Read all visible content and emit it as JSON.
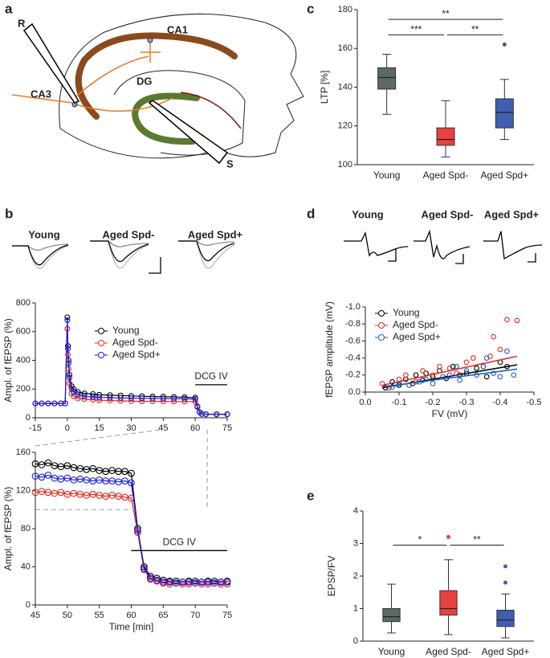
{
  "diagram": {
    "panel": "a",
    "labels": [
      "R",
      "CA1",
      "CA3",
      "DG",
      "S"
    ]
  },
  "chart_data": [
    {
      "type": "line",
      "panel": "b",
      "trace_labels": [
        "Young",
        "Aged Spd-",
        "Aged Spd+"
      ],
      "ylabel": "Ampl. of fEPSP (%)",
      "legend": "upper right",
      "x": [
        -15,
        -12,
        -9,
        -6,
        -3,
        -1,
        0,
        0.3,
        0.6,
        1,
        2,
        3,
        5,
        8,
        12,
        15,
        20,
        25,
        30,
        35,
        40,
        45,
        50,
        55,
        60,
        61,
        62,
        63,
        65,
        70,
        75
      ],
      "series": [
        {
          "name": "Young",
          "color": "#000000",
          "values": [
            100,
            100,
            100,
            100,
            100,
            100,
            700,
            500,
            400,
            300,
            220,
            200,
            180,
            170,
            165,
            160,
            158,
            155,
            152,
            150,
            148,
            147,
            145,
            143,
            140,
            80,
            40,
            28,
            25,
            25,
            25
          ]
        },
        {
          "name": "Aged Spd-",
          "color": "#e8281e",
          "values": [
            100,
            100,
            100,
            100,
            100,
            100,
            620,
            440,
            340,
            240,
            170,
            150,
            135,
            130,
            125,
            122,
            120,
            118,
            116,
            115,
            115,
            114,
            113,
            113,
            112,
            75,
            38,
            26,
            24,
            23,
            23
          ]
        },
        {
          "name": "Aged Spd+",
          "color": "#1f1fe0",
          "values": [
            100,
            100,
            100,
            100,
            100,
            100,
            680,
            480,
            380,
            280,
            200,
            180,
            160,
            150,
            145,
            142,
            140,
            138,
            137,
            136,
            135,
            134,
            133,
            132,
            130,
            78,
            39,
            27,
            25,
            24,
            24
          ]
        }
      ],
      "xlim": [
        -15,
        75
      ],
      "xticks": [
        -15,
        0,
        15,
        30,
        45,
        60,
        75
      ],
      "ylim": [
        0,
        800
      ],
      "yticks": [
        0,
        200,
        400,
        600,
        800
      ],
      "annotation": {
        "text": "DCG IV",
        "x": [
          60,
          75
        ],
        "y": 230
      }
    },
    {
      "type": "line",
      "xlabel": "Time [min]",
      "ylabel": "Ampl. of fEPSP (%)",
      "x": [
        45,
        46,
        47,
        48,
        49,
        50,
        51,
        52,
        53,
        54,
        55,
        56,
        57,
        58,
        59,
        60,
        61,
        62,
        63,
        64,
        65,
        66,
        67,
        68,
        69,
        70,
        71,
        72,
        73,
        74,
        75
      ],
      "series": [
        {
          "color": "#000000",
          "values": [
            148,
            147,
            149,
            146,
            145,
            146,
            144,
            143,
            142,
            143,
            141,
            140,
            141,
            140,
            140,
            138,
            80,
            40,
            30,
            28,
            26,
            25,
            25,
            24,
            25,
            25,
            24,
            25,
            25,
            24,
            25
          ]
        },
        {
          "color": "#e8281e",
          "values": [
            118,
            119,
            118,
            117,
            118,
            116,
            117,
            116,
            115,
            116,
            115,
            114,
            115,
            114,
            113,
            112,
            76,
            37,
            27,
            25,
            23,
            22,
            23,
            22,
            22,
            23,
            22,
            22,
            23,
            22,
            22
          ]
        },
        {
          "color": "#1f1fe0",
          "values": [
            135,
            134,
            136,
            133,
            132,
            133,
            131,
            132,
            131,
            130,
            131,
            130,
            130,
            129,
            130,
            128,
            78,
            38,
            28,
            26,
            24,
            24,
            23,
            24,
            24,
            23,
            24,
            24,
            23,
            24,
            24
          ]
        }
      ],
      "xlim": [
        45,
        75
      ],
      "xticks": [
        45,
        50,
        55,
        60,
        65,
        70,
        75
      ],
      "ylim": [
        0,
        160
      ],
      "yticks": [
        0,
        40,
        80,
        120,
        160
      ],
      "reference_line": {
        "y": 100,
        "x": [
          45,
          60
        ]
      },
      "annotation": {
        "text": "DCG IV",
        "x": [
          60,
          75
        ],
        "y": 57
      }
    },
    {
      "type": "box",
      "panel": "c",
      "ylabel": "LTP [%]",
      "categories": [
        "Young",
        "Aged Spd-",
        "Aged Spd+"
      ],
      "colors": [
        "#5a6a62",
        "#e8413f",
        "#3f5fb0"
      ],
      "boxes": [
        {
          "whisker_low": 126,
          "q1": 139,
          "median": 145,
          "q3": 150,
          "whisker_high": 157,
          "outliers": []
        },
        {
          "whisker_low": 104,
          "q1": 110,
          "median": 113,
          "q3": 119,
          "whisker_high": 133,
          "outliers": []
        },
        {
          "whisker_low": 113,
          "q1": 119,
          "median": 127,
          "q3": 134,
          "whisker_high": 144,
          "outliers": [
            162
          ]
        }
      ],
      "ylim": [
        100,
        180
      ],
      "yticks": [
        100,
        120,
        140,
        160,
        180
      ],
      "brackets": [
        {
          "from": 0,
          "to": 2,
          "y": 175,
          "label": "**"
        },
        {
          "from": 0,
          "to": 1,
          "y": 167,
          "label": "***"
        },
        {
          "from": 1,
          "to": 2,
          "y": 167,
          "label": "**"
        }
      ]
    },
    {
      "type": "scatter",
      "panel": "d",
      "trace_labels": [
        "Young",
        "Aged Spd-",
        "Aged Spd+"
      ],
      "xlabel": "FV  (mV)",
      "ylabel": "fEPSP amplitude (mV)",
      "legend": "upper left",
      "series": [
        {
          "name": "Young",
          "color": "#000000",
          "x": [
            -0.06,
            -0.08,
            -0.1,
            -0.12,
            -0.14,
            -0.15,
            -0.17,
            -0.18,
            -0.2,
            -0.22,
            -0.24,
            -0.26,
            -0.28,
            -0.3,
            -0.33,
            -0.36,
            -0.4,
            -0.42
          ],
          "values": [
            -0.05,
            -0.12,
            -0.08,
            -0.15,
            -0.1,
            -0.2,
            -0.14,
            -0.22,
            -0.18,
            -0.25,
            -0.16,
            -0.3,
            -0.2,
            -0.22,
            -0.28,
            -0.18,
            -0.35,
            -0.3
          ],
          "fit": {
            "x": [
              -0.05,
              -0.45
            ],
            "y": [
              -0.05,
              -0.32
            ]
          }
        },
        {
          "name": "Aged Spd-",
          "color": "#e8281e",
          "x": [
            -0.05,
            -0.07,
            -0.1,
            -0.12,
            -0.15,
            -0.17,
            -0.2,
            -0.22,
            -0.25,
            -0.27,
            -0.3,
            -0.32,
            -0.35,
            -0.37,
            -0.4,
            -0.42,
            -0.45,
            -0.38
          ],
          "values": [
            -0.1,
            -0.05,
            -0.15,
            -0.2,
            -0.12,
            -0.25,
            -0.2,
            -0.3,
            -0.28,
            -0.22,
            -0.35,
            -0.4,
            -0.3,
            -0.42,
            -0.5,
            -0.85,
            -0.84,
            -0.65
          ],
          "fit": {
            "x": [
              -0.05,
              -0.45
            ],
            "y": [
              -0.08,
              -0.42
            ]
          }
        },
        {
          "name": "Aged Spd+",
          "color": "#1f5fc0",
          "x": [
            -0.08,
            -0.1,
            -0.13,
            -0.16,
            -0.18,
            -0.2,
            -0.23,
            -0.25,
            -0.28,
            -0.3,
            -0.33,
            -0.35,
            -0.38,
            -0.4,
            -0.42,
            -0.44,
            -0.36,
            -0.27
          ],
          "values": [
            -0.06,
            -0.1,
            -0.08,
            -0.12,
            -0.15,
            -0.1,
            -0.18,
            -0.2,
            -0.14,
            -0.25,
            -0.2,
            -0.3,
            -0.22,
            -0.18,
            -0.48,
            -0.2,
            -0.4,
            -0.3
          ],
          "fit": {
            "x": [
              -0.05,
              -0.45
            ],
            "y": [
              -0.06,
              -0.27
            ]
          }
        }
      ],
      "xlim": [
        0,
        -0.5
      ],
      "xticks": [
        {
          "value": 0,
          "label": "0.0"
        },
        -0.1,
        -0.2,
        -0.3,
        -0.4,
        -0.5
      ],
      "ylim": [
        0,
        -1
      ],
      "yticks": [
        {
          "value": 0,
          "label": "0.0"
        },
        -0.2,
        -0.4,
        -0.6,
        -0.8,
        {
          "value": -1,
          "label": "-1.0"
        }
      ]
    },
    {
      "type": "box",
      "panel": "e",
      "ylabel": "EPSP/FV",
      "categories": [
        "Young",
        "Aged Spd-",
        "Aged Spd+"
      ],
      "colors": [
        "#5a6a62",
        "#e8413f",
        "#3f5fb0"
      ],
      "boxes": [
        {
          "whisker_low": 0.25,
          "q1": 0.6,
          "median": 0.75,
          "q3": 1.0,
          "whisker_high": 1.75,
          "outliers": []
        },
        {
          "whisker_low": 0.2,
          "q1": 0.8,
          "median": 1.0,
          "q3": 1.55,
          "whisker_high": 2.5,
          "outliers": [
            3.2
          ]
        },
        {
          "whisker_low": 0.1,
          "q1": 0.45,
          "median": 0.65,
          "q3": 0.95,
          "whisker_high": 1.45,
          "outliers": [
            1.8,
            2.3
          ]
        }
      ],
      "ylim": [
        0,
        4
      ],
      "yticks": [
        0,
        1,
        2,
        3,
        4
      ],
      "brackets": [
        {
          "from": 0,
          "to": 1,
          "y": 2.95,
          "label": "*"
        },
        {
          "from": 1,
          "to": 2,
          "y": 2.95,
          "label": "**"
        }
      ]
    }
  ]
}
